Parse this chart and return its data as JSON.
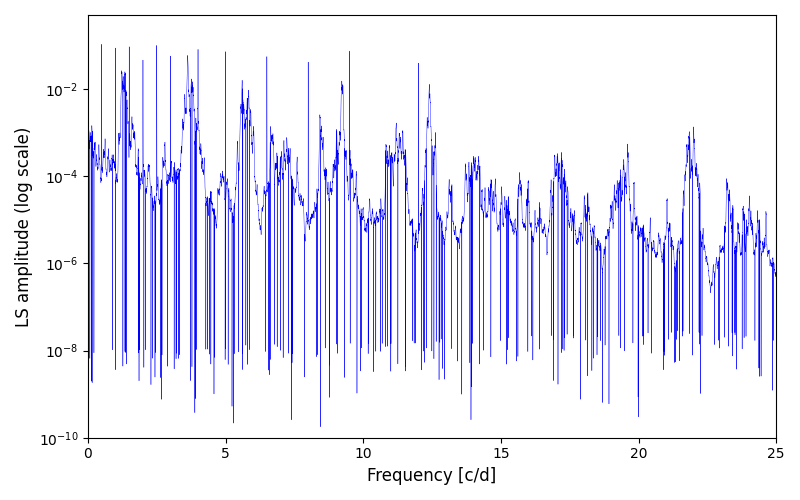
{
  "xlabel": "Frequency [c/d]",
  "ylabel": "LS amplitude (log scale)",
  "line_color": "#0000ff",
  "xlim": [
    0,
    25
  ],
  "ylim": [
    1e-10,
    0.5
  ],
  "freq_max": 25,
  "n_points": 50000,
  "seed": 12345,
  "figsize": [
    8.0,
    5.0
  ],
  "dpi": 100,
  "background_color": "#ffffff",
  "linewidth": 0.3
}
